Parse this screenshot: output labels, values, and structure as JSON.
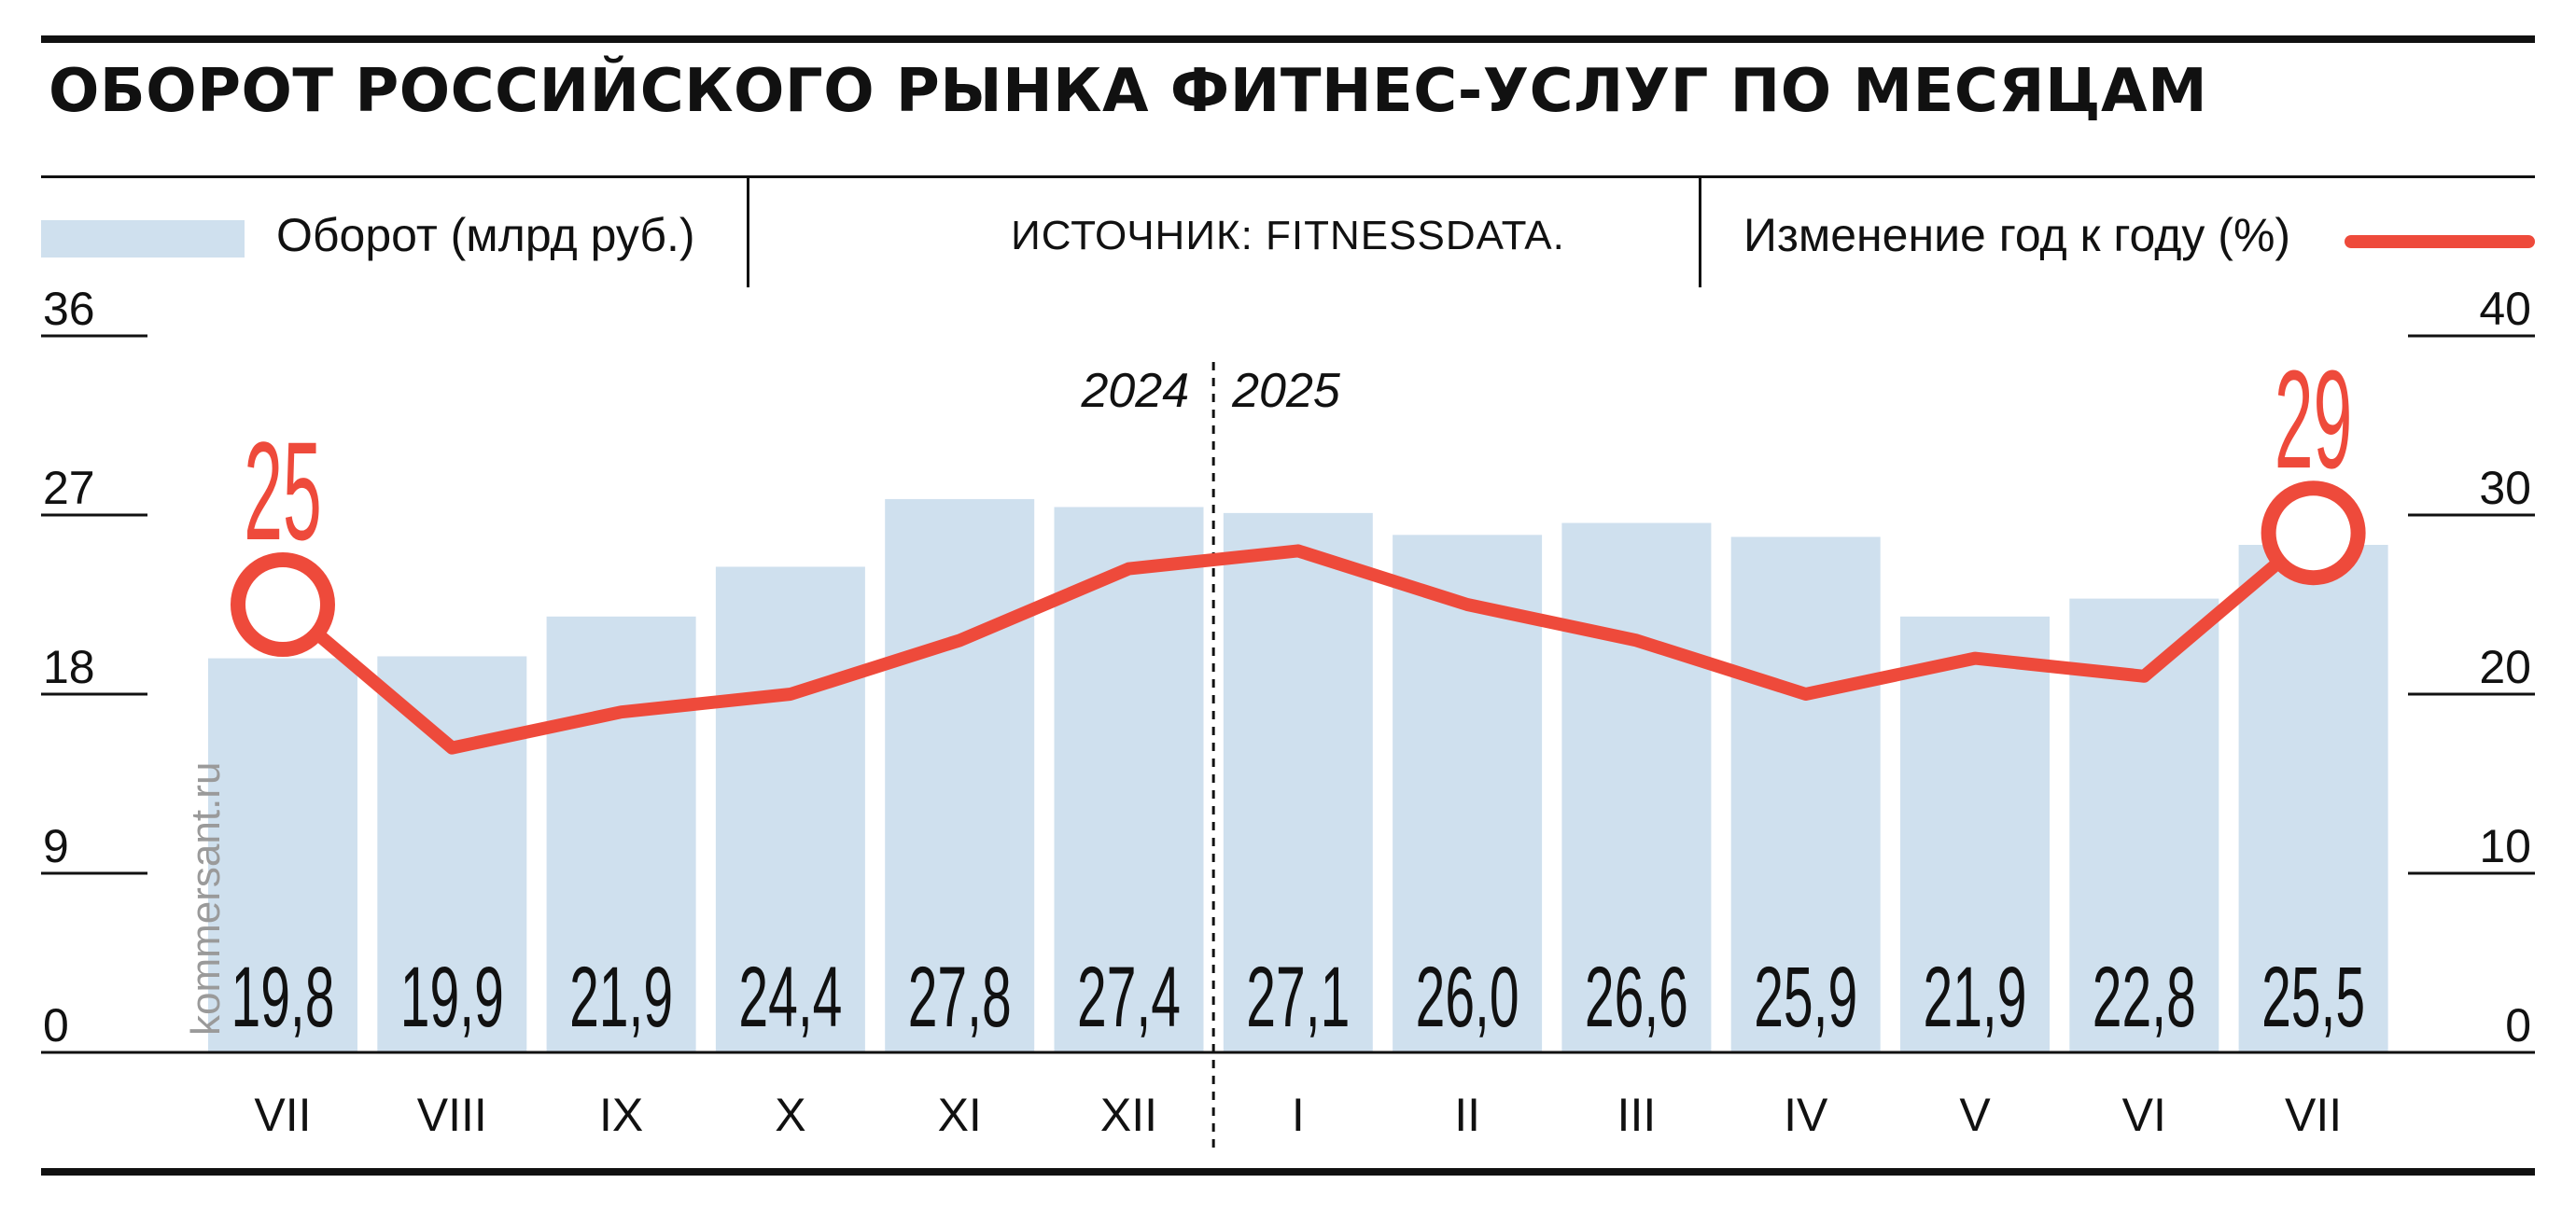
{
  "title": "ОБОРОТ РОССИЙСКОГО РЫНКА ФИТНЕС-УСЛУГ ПО МЕСЯЦАМ",
  "legend": {
    "bars_label": "Оборот (млрд руб.)",
    "source": "ИСТОЧНИК: FITNESSDATA.",
    "line_label": "Изменение год к году (%)"
  },
  "watermark": "kommersant.ru",
  "colors": {
    "bar": "#cfe0ee",
    "line": "#ee4a3b",
    "text": "#111111"
  },
  "chart_data": {
    "type": "bar",
    "categories": [
      "VII",
      "VIII",
      "IX",
      "X",
      "XI",
      "XII",
      "I",
      "II",
      "III",
      "IV",
      "V",
      "VI",
      "VII"
    ],
    "year_labels": [
      "2024",
      "2025"
    ],
    "year_divider_after_index": 5,
    "series": [
      {
        "name": "Оборот (млрд руб.)",
        "axis": "left",
        "values": [
          19.8,
          19.9,
          21.9,
          24.4,
          27.8,
          27.4,
          27.1,
          26.0,
          26.6,
          25.9,
          21.9,
          22.8,
          25.5
        ],
        "value_labels": [
          "19,8",
          "19,9",
          "21,9",
          "24,4",
          "27,8",
          "27,4",
          "27,1",
          "26,0",
          "26,6",
          "25,9",
          "21,9",
          "22,8",
          "25,5"
        ]
      },
      {
        "name": "Изменение год к году (%)",
        "type": "line",
        "axis": "right",
        "values": [
          25,
          17,
          19,
          20,
          23,
          27,
          28,
          25,
          23,
          20,
          22,
          21,
          29
        ],
        "highlight_labels": [
          {
            "index": 0,
            "label": "25"
          },
          {
            "index": 12,
            "label": "29"
          }
        ]
      }
    ],
    "left_axis": {
      "ylim": [
        0,
        36
      ],
      "ticks": [
        0,
        9,
        18,
        27,
        36
      ]
    },
    "right_axis": {
      "ylim": [
        0,
        40
      ],
      "ticks": [
        0,
        10,
        20,
        30,
        40
      ]
    },
    "grid": false
  }
}
